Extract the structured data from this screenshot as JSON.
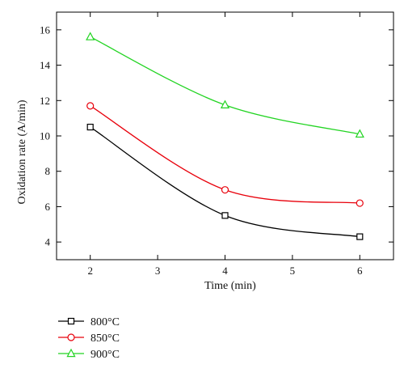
{
  "chart_data": {
    "type": "line",
    "title": "",
    "xlabel": "Time (min)",
    "ylabel": "Oxidation rate (A/min)",
    "x": [
      2,
      4,
      6
    ],
    "xlim": [
      1.5,
      6.5
    ],
    "ylim": [
      3,
      17
    ],
    "xticks": [
      2,
      3,
      4,
      5,
      6
    ],
    "yticks": [
      4,
      6,
      8,
      10,
      12,
      14,
      16
    ],
    "grid": false,
    "legend_position": "bottom-left, below plot",
    "series": [
      {
        "name": "800°C",
        "values": [
          10.5,
          5.5,
          4.3
        ],
        "color": "#000000",
        "marker": "square"
      },
      {
        "name": "850°C",
        "values": [
          11.7,
          6.95,
          6.2
        ],
        "color": "#e8000b",
        "marker": "circle"
      },
      {
        "name": "900°C",
        "values": [
          15.6,
          11.75,
          10.1
        ],
        "color": "#22d422",
        "marker": "triangle"
      }
    ]
  }
}
